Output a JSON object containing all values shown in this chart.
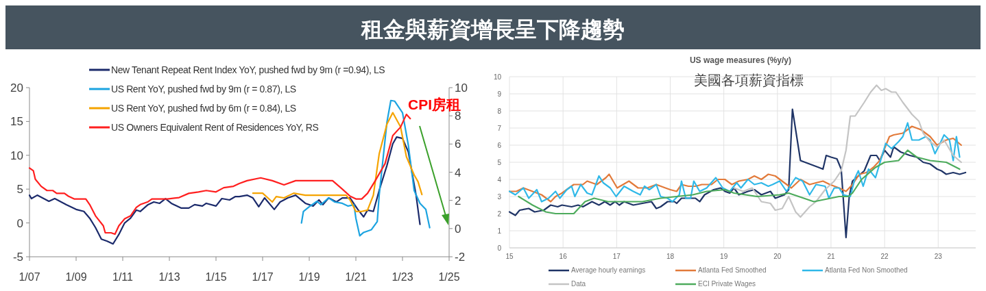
{
  "chart_data": [
    {
      "type": "line",
      "title": "租金與薪資增長呈下降趨勢",
      "annotations": [
        "CPI房租"
      ],
      "legend": "top",
      "grid": false,
      "xlim": [
        "2007-01",
        "2025-01"
      ],
      "xticks": [
        {
          "value": "2007-01",
          "label": "1/07"
        },
        {
          "value": "2009-01",
          "label": "1/09"
        },
        {
          "value": "2011-01",
          "label": "1/11"
        },
        {
          "value": "2013-01",
          "label": "1/13"
        },
        {
          "value": "2015-01",
          "label": "1/15"
        },
        {
          "value": "2017-01",
          "label": "1/17"
        },
        {
          "value": "2019-01",
          "label": "1/19"
        },
        {
          "value": "2021-01",
          "label": "1/21"
        },
        {
          "value": "2023-01",
          "label": "1/23"
        },
        {
          "value": "2025-01",
          "label": "1/25"
        }
      ],
      "ylim": [
        -5,
        20
      ],
      "yticks": [
        -5,
        0,
        5,
        10,
        15,
        20
      ],
      "y2lim": [
        -2,
        10
      ],
      "y2ticks": [
        -2,
        0,
        2,
        4,
        6,
        8,
        10
      ],
      "series": [
        {
          "name": "New Tenant Repeat Rent Index YoY, pushed fwd by 9m (r =0.94), LS",
          "color": "#1b2a6b",
          "x": [
            "2007-01",
            "2007-02",
            "2007-05",
            "2007-11",
            "2008-02",
            "2008-08",
            "2009-01",
            "2009-05",
            "2009-08",
            "2009-11",
            "2010-02",
            "2010-05",
            "2010-08",
            "2010-11",
            "2011-02",
            "2011-05",
            "2011-08",
            "2011-10",
            "2012-02",
            "2012-05",
            "2012-08",
            "2012-11",
            "2013-02",
            "2013-07",
            "2013-11",
            "2014-02",
            "2014-06",
            "2014-08",
            "2015-01",
            "2015-04",
            "2015-08",
            "2015-11",
            "2016-01",
            "2016-05",
            "2016-08",
            "2016-11",
            "2017-02",
            "2017-07",
            "2017-10",
            "2018-02",
            "2018-06",
            "2018-11",
            "2019-03",
            "2019-06",
            "2019-08",
            "2019-11",
            "2020-03",
            "2020-06",
            "2020-10",
            "2021-02",
            "2021-05",
            "2021-07",
            "2021-10",
            "2022-01",
            "2022-05",
            "2022-08",
            "2022-10",
            "2023-01",
            "2023-04",
            "2023-08",
            "2023-10"
          ],
          "values": [
            4.1,
            3.6,
            4.1,
            3.2,
            3.6,
            2.7,
            2.0,
            1.7,
            0.7,
            -0.7,
            -2.4,
            -2.7,
            -3.1,
            -1.7,
            0.0,
            0.7,
            1.9,
            1.7,
            2.7,
            3.1,
            2.9,
            3.6,
            2.9,
            2.2,
            2.2,
            2.7,
            2.5,
            2.9,
            2.5,
            3.6,
            3.4,
            3.9,
            3.9,
            4.1,
            3.7,
            2.4,
            3.7,
            2.0,
            3.1,
            3.7,
            4.1,
            2.9,
            2.5,
            3.4,
            2.7,
            3.7,
            3.1,
            3.7,
            3.7,
            2.0,
            0.9,
            1.9,
            1.7,
            4.8,
            8.5,
            11.7,
            12.7,
            12.5,
            10.5,
            4.1,
            -0.2
          ]
        },
        {
          "name": "US Rent YoY, pushed fwd by 9m (r = 0.87), LS",
          "color": "#1ba3e0",
          "x": [
            "2018-09",
            "2018-10",
            "2019-01",
            "2019-05",
            "2019-07",
            "2019-11",
            "2020-02",
            "2020-06",
            "2020-09",
            "2020-12",
            "2021-01",
            "2021-03",
            "2021-05",
            "2021-09",
            "2021-12",
            "2022-01",
            "2022-05",
            "2022-07",
            "2022-09",
            "2023-01",
            "2023-04",
            "2023-07",
            "2023-10",
            "2024-01",
            "2024-03"
          ],
          "values": [
            0.0,
            1.7,
            2.4,
            3.2,
            2.7,
            3.7,
            3.1,
            2.9,
            2.5,
            2.7,
            0.7,
            -1.9,
            -1.4,
            -1.0,
            0.2,
            4.1,
            14.9,
            18.1,
            18.0,
            16.3,
            11.5,
            4.8,
            2.9,
            2.0,
            -0.7
          ]
        },
        {
          "name": "US Rent YoY, pushed fwd by 6m (r = 0.84), LS",
          "color": "#f5a300",
          "x": [
            "2016-08",
            "2017-01",
            "2017-06",
            "2017-08",
            "2017-12",
            "2018-05",
            "2018-11",
            "2019-06",
            "2020-03",
            "2020-08",
            "2020-10",
            "2021-01",
            "2021-04",
            "2021-07",
            "2021-10",
            "2022-01",
            "2022-05",
            "2022-08",
            "2022-12",
            "2023-03",
            "2023-07",
            "2023-09",
            "2023-11"
          ],
          "values": [
            4.4,
            4.4,
            3.1,
            3.9,
            3.7,
            4.4,
            4.1,
            4.1,
            4.1,
            4.1,
            3.4,
            1.7,
            1.7,
            1.9,
            4.1,
            10.2,
            14.6,
            16.3,
            14.2,
            9.8,
            7.1,
            6.1,
            4.2
          ]
        },
        {
          "name": "US Owners Equivalent Rent of Residences YoY, RS",
          "color": "#ff1f1f",
          "axis": "y2",
          "x": [
            "2007-01",
            "2007-03",
            "2007-04",
            "2007-07",
            "2007-10",
            "2008-01",
            "2008-03",
            "2008-07",
            "2008-09",
            "2008-12",
            "2009-06",
            "2009-08",
            "2009-11",
            "2010-03",
            "2010-04",
            "2010-07",
            "2010-09",
            "2010-11",
            "2011-02",
            "2011-05",
            "2011-08",
            "2011-10",
            "2012-02",
            "2012-04",
            "2012-09",
            "2012-12",
            "2013-06",
            "2013-11",
            "2014-04",
            "2014-08",
            "2015-01",
            "2015-05",
            "2015-10",
            "2016-01",
            "2016-05",
            "2016-12",
            "2017-06",
            "2017-12",
            "2018-06",
            "2019-01",
            "2019-06",
            "2020-01",
            "2020-06",
            "2020-10",
            "2021-01",
            "2021-04",
            "2021-07",
            "2021-11",
            "2022-04",
            "2022-08",
            "2022-12",
            "2023-03",
            "2023-05"
          ],
          "values": [
            4.3,
            4.1,
            3.5,
            3.0,
            2.7,
            2.7,
            2.5,
            2.5,
            2.3,
            2.1,
            2.1,
            1.7,
            0.9,
            0.2,
            -0.3,
            -0.3,
            -0.4,
            0.2,
            0.7,
            0.9,
            1.5,
            1.7,
            1.9,
            2.1,
            2.1,
            2.1,
            2.2,
            2.5,
            2.6,
            2.7,
            2.6,
            2.9,
            3.0,
            3.2,
            3.4,
            3.6,
            3.4,
            3.1,
            3.4,
            3.4,
            3.4,
            3.4,
            2.8,
            2.3,
            2.1,
            2.1,
            2.5,
            3.4,
            4.6,
            6.6,
            7.2,
            8.1,
            7.8
          ]
        }
      ]
    },
    {
      "type": "line",
      "title": "US wage measures (%y/y)",
      "subtitle": "美國各項薪資指標",
      "legend": "bottom",
      "grid": true,
      "xlim": [
        15,
        23.7
      ],
      "xticks": [
        15,
        16,
        17,
        18,
        19,
        20,
        21,
        22,
        23
      ],
      "ylim": [
        0,
        10
      ],
      "yticks": [
        0,
        1,
        2,
        3,
        4,
        5,
        6,
        7,
        8,
        9,
        10
      ],
      "series": [
        {
          "name": "Average hourly earnings",
          "color": "#1f3466",
          "x": [
            15.0,
            15.11,
            15.19,
            15.36,
            15.47,
            15.64,
            15.77,
            15.9,
            15.98,
            16.16,
            16.28,
            16.37,
            16.54,
            16.67,
            16.78,
            16.88,
            16.97,
            17.05,
            17.14,
            17.31,
            17.48,
            17.65,
            17.74,
            17.82,
            17.95,
            18.08,
            18.12,
            18.21,
            18.34,
            18.47,
            18.55,
            18.64,
            18.81,
            18.94,
            19.02,
            19.11,
            19.19,
            19.28,
            19.45,
            19.57,
            19.7,
            19.87,
            19.96,
            20.13,
            20.21,
            20.28,
            20.43,
            20.6,
            20.77,
            20.85,
            20.91,
            21.0,
            21.11,
            21.19,
            21.28,
            21.34,
            21.4,
            21.51,
            21.62,
            21.74,
            21.85,
            21.91,
            22.0,
            22.11,
            22.17,
            22.3,
            22.47,
            22.6,
            22.72,
            22.85,
            22.98,
            23.06,
            23.15,
            23.28,
            23.4,
            23.51
          ],
          "values": [
            2.1,
            1.9,
            2.2,
            2.3,
            2.1,
            2.2,
            2.5,
            2.4,
            2.5,
            2.4,
            2.5,
            2.4,
            2.7,
            2.5,
            2.7,
            2.5,
            2.7,
            2.5,
            2.7,
            2.5,
            2.6,
            2.7,
            2.3,
            2.4,
            2.7,
            2.7,
            2.6,
            2.9,
            2.9,
            2.9,
            2.7,
            3.1,
            3.4,
            3.5,
            3.3,
            3.2,
            3.5,
            3.1,
            3.3,
            3.4,
            3.1,
            3.3,
            2.9,
            3.1,
            3.4,
            8.1,
            5.1,
            4.9,
            4.7,
            4.6,
            5.4,
            5.3,
            5.2,
            4.6,
            0.6,
            3.0,
            3.9,
            4.2,
            4.5,
            5.4,
            5.4,
            5.1,
            5.7,
            5.3,
            5.9,
            5.6,
            5.4,
            5.3,
            5.0,
            4.9,
            4.6,
            4.5,
            4.3,
            4.4,
            4.3,
            4.4
          ]
        },
        {
          "name": "Atlanta Fed Smoothed",
          "color": "#e27a3a",
          "x": [
            15.0,
            15.13,
            15.26,
            15.43,
            15.6,
            15.77,
            15.86,
            15.98,
            16.11,
            16.2,
            16.37,
            16.45,
            16.63,
            16.8,
            16.86,
            17.01,
            17.23,
            17.4,
            17.57,
            17.74,
            17.91,
            18.0,
            18.12,
            18.21,
            18.34,
            18.47,
            18.59,
            18.77,
            18.89,
            19.02,
            19.15,
            19.28,
            19.45,
            19.57,
            19.7,
            19.83,
            19.96,
            20.13,
            20.26,
            20.43,
            20.6,
            20.72,
            20.85,
            20.98,
            21.15,
            21.28,
            21.4,
            21.53,
            21.66,
            21.79,
            21.91,
            22.09,
            22.17,
            22.34,
            22.51,
            22.68,
            22.85,
            22.98,
            23.15,
            23.28,
            23.43
          ],
          "values": [
            3.3,
            3.3,
            3.5,
            3.3,
            3.1,
            2.7,
            3.0,
            3.2,
            3.5,
            3.7,
            3.7,
            3.9,
            3.7,
            4.1,
            4.3,
            3.5,
            3.9,
            3.5,
            3.5,
            3.7,
            3.5,
            3.4,
            3.3,
            3.7,
            3.6,
            3.6,
            3.7,
            3.7,
            4.0,
            4.0,
            3.7,
            3.9,
            4.0,
            4.2,
            4.0,
            4.3,
            4.2,
            3.8,
            3.5,
            4.0,
            3.7,
            3.8,
            3.9,
            3.7,
            3.5,
            3.3,
            3.7,
            4.3,
            4.4,
            4.7,
            5.1,
            6.5,
            6.6,
            6.7,
            7.1,
            6.9,
            6.5,
            6.0,
            6.3,
            6.4,
            6.0
          ]
        },
        {
          "name": "Atlanta Fed Non Smoothed",
          "color": "#2fb8e8",
          "x": [
            15.0,
            15.11,
            15.26,
            15.36,
            15.51,
            15.6,
            15.73,
            15.86,
            15.94,
            16.07,
            16.16,
            16.22,
            16.33,
            16.45,
            16.54,
            16.67,
            16.75,
            16.88,
            16.99,
            17.14,
            17.31,
            17.44,
            17.52,
            17.61,
            17.74,
            17.82,
            17.95,
            18.04,
            18.17,
            18.21,
            18.29,
            18.38,
            18.44,
            18.55,
            18.68,
            18.85,
            18.98,
            19.11,
            19.24,
            19.32,
            19.45,
            19.57,
            19.7,
            19.83,
            19.91,
            20.04,
            20.17,
            20.34,
            20.47,
            20.6,
            20.72,
            20.89,
            20.96,
            21.06,
            21.15,
            21.23,
            21.36,
            21.45,
            21.51,
            21.6,
            21.7,
            21.83,
            22.02,
            22.13,
            22.26,
            22.34,
            22.43,
            22.51,
            22.64,
            22.77,
            22.85,
            22.94,
            23.02,
            23.11,
            23.21,
            23.28,
            23.34,
            23.4
          ],
          "values": [
            3.3,
            3.1,
            3.5,
            2.9,
            3.4,
            2.7,
            2.9,
            3.3,
            2.9,
            3.4,
            3.6,
            3.0,
            3.7,
            3.2,
            3.1,
            4.2,
            3.8,
            3.5,
            3.0,
            3.6,
            3.3,
            3.1,
            3.6,
            3.4,
            3.7,
            3.0,
            2.9,
            2.7,
            3.1,
            3.9,
            2.9,
            2.9,
            3.9,
            3.3,
            3.5,
            4.1,
            3.5,
            3.3,
            3.8,
            3.5,
            4.0,
            3.7,
            3.8,
            3.6,
            3.7,
            3.9,
            3.3,
            4.1,
            3.9,
            3.1,
            3.7,
            3.6,
            2.9,
            3.5,
            3.5,
            3.1,
            3.0,
            4.1,
            4.5,
            3.6,
            4.6,
            4.1,
            6.1,
            5.8,
            6.2,
            6.5,
            7.3,
            6.3,
            6.3,
            6.5,
            6.3,
            5.5,
            6.0,
            6.6,
            6.3,
            5.1,
            6.5,
            5.3
          ]
        },
        {
          "name": "Data",
          "color": "#c4c4c4",
          "x": [
            19.19,
            19.36,
            19.53,
            19.7,
            19.87,
            19.96,
            20.09,
            20.21,
            20.34,
            20.43,
            20.6,
            20.72,
            20.89,
            21.06,
            21.19,
            21.28,
            21.36,
            21.45,
            21.62,
            21.74,
            21.85,
            21.94,
            22.02,
            22.13,
            22.21,
            22.34,
            22.51,
            22.64,
            22.72,
            22.85,
            22.98,
            23.11,
            23.28,
            23.43
          ],
          "values": [
            3.5,
            3.3,
            3.5,
            2.7,
            2.6,
            2.2,
            2.3,
            3.0,
            2.1,
            1.8,
            2.4,
            2.7,
            3.4,
            3.9,
            4.5,
            5.7,
            7.7,
            7.7,
            8.5,
            9.1,
            9.5,
            9.2,
            9.3,
            9.1,
            9.1,
            8.5,
            7.8,
            7.4,
            6.7,
            6.2,
            5.9,
            6.3,
            5.4,
            5.0
          ]
        },
        {
          "name": "ECI Private Wages",
          "color": "#4dab5c",
          "x": [
            15.17,
            15.43,
            15.68,
            15.86,
            16.2,
            16.41,
            16.58,
            16.84,
            17.14,
            17.48,
            17.82,
            18.12,
            18.42,
            18.68,
            19.02,
            19.19,
            19.62,
            20.04,
            20.21,
            20.68,
            21.15,
            21.32,
            21.4,
            21.57,
            21.83,
            22.0,
            22.26,
            22.43,
            22.6,
            22.85,
            23.15,
            23.4
          ],
          "values": [
            3.0,
            2.5,
            2.1,
            2.0,
            2.0,
            2.7,
            2.9,
            2.7,
            2.7,
            2.7,
            2.9,
            3.0,
            3.1,
            3.3,
            3.4,
            3.2,
            3.0,
            3.1,
            3.2,
            2.7,
            3.0,
            3.0,
            3.2,
            4.0,
            4.7,
            5.0,
            5.1,
            5.7,
            5.3,
            5.1,
            5.0,
            4.6
          ]
        }
      ]
    }
  ]
}
